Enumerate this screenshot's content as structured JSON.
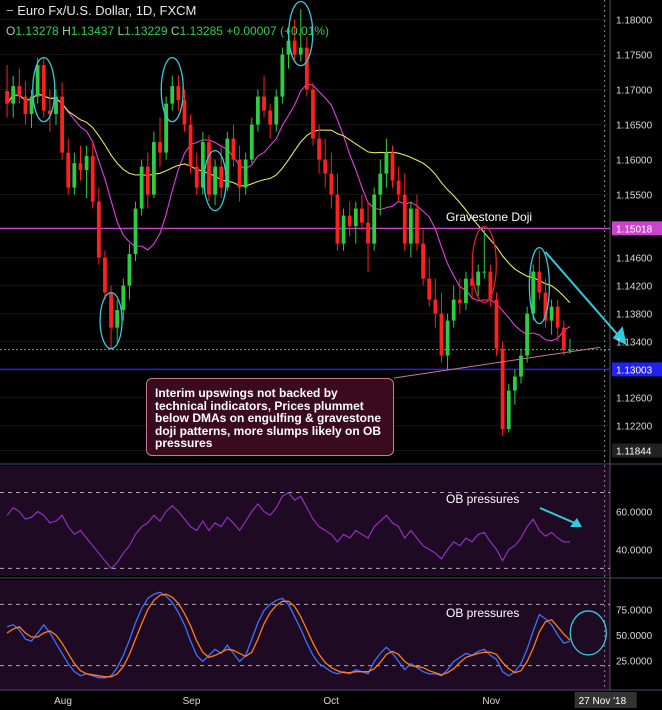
{
  "header": {
    "symbol_title": "Euro Fx/U.S. Dollar, 1D, FXCM",
    "o_label": "O",
    "o_value": "1.13278",
    "h_label": "H",
    "h_value": "1.13437",
    "l_label": "L",
    "l_value": "1.13229",
    "c_label": "C",
    "c_value": "1.13285",
    "change": "+0.00007 (+0.01%)"
  },
  "annotations": {
    "gravestone": "Gravestone Doji",
    "callout": "Interim upswings not backed by technical indicators, Prices plummet below DMAs on engulfing & gravestone doji patterns, more slumps likely on OB pressures",
    "ob_rsi": "OB pressures",
    "ob_stoch": "OB pressures"
  },
  "colors": {
    "background": "#000000",
    "bull": "#2ecc40",
    "bear": "#ff2020",
    "fast_ma": "#e040e0",
    "slow_ma": "#e8e85a",
    "resistance": "#cc44cc",
    "support": "#2222ee",
    "current": "#33cc33",
    "rsi": "#9933cc",
    "stoch_k": "#3f6fff",
    "stoch_d": "#ff7a1a",
    "highlight": "#33ccdd",
    "gravestone_ring": "#dd2222"
  },
  "chart_data": [
    {
      "type": "candlestick",
      "title": "Euro Fx/U.S. Dollar, 1D, FXCM",
      "ylim": [
        1.1168,
        1.1828
      ],
      "y_ticks": [
        "1.18000",
        "1.17500",
        "1.17000",
        "1.16500",
        "1.16000",
        "1.15500",
        "1.15018",
        "1.14600",
        "1.14200",
        "1.13800",
        "1.13400",
        "1.13003",
        "1.12600",
        "1.12200",
        "1.11844"
      ],
      "y_tick_values": [
        1.18,
        1.175,
        1.17,
        1.165,
        1.16,
        1.155,
        1.15018,
        1.146,
        1.142,
        1.138,
        1.134,
        1.13003,
        1.126,
        1.122,
        1.11844
      ],
      "highlighted_levels": [
        {
          "label": "1.15018",
          "value": 1.15018,
          "role": "resistance"
        },
        {
          "label": "1.13003",
          "value": 1.13003,
          "role": "support"
        },
        {
          "label": "1.11844",
          "value": 1.11844,
          "role": "axis_low"
        }
      ],
      "current_price": 1.13285,
      "x_labels": [
        "Aug",
        "Sep",
        "Oct",
        "Nov"
      ],
      "x_label_index": [
        9,
        30,
        53,
        79
      ],
      "cursor_date": "27 Nov '18",
      "cursor_index": 98,
      "candles": [
        [
          1.1698,
          1.1735,
          1.166,
          1.168
        ],
        [
          1.168,
          1.172,
          1.166,
          1.1705
        ],
        [
          1.1705,
          1.173,
          1.168,
          1.169
        ],
        [
          1.169,
          1.1712,
          1.165,
          1.1665
        ],
        [
          1.1665,
          1.17,
          1.1645,
          1.169
        ],
        [
          1.169,
          1.1745,
          1.168,
          1.1735
        ],
        [
          1.1735,
          1.1745,
          1.166,
          1.167
        ],
        [
          1.167,
          1.17,
          1.164,
          1.1665
        ],
        [
          1.1665,
          1.17,
          1.165,
          1.169
        ],
        [
          1.169,
          1.171,
          1.16,
          1.161
        ],
        [
          1.161,
          1.163,
          1.155,
          1.156
        ],
        [
          1.156,
          1.161,
          1.155,
          1.1595
        ],
        [
          1.1595,
          1.162,
          1.157,
          1.1585
        ],
        [
          1.1585,
          1.162,
          1.1545,
          1.1605
        ],
        [
          1.1605,
          1.1625,
          1.153,
          1.154
        ],
        [
          1.154,
          1.156,
          1.145,
          1.146
        ],
        [
          1.146,
          1.147,
          1.14,
          1.141
        ],
        [
          1.141,
          1.142,
          1.133,
          1.136
        ],
        [
          1.136,
          1.14,
          1.134,
          1.1385
        ],
        [
          1.1385,
          1.143,
          1.137,
          1.142
        ],
        [
          1.142,
          1.148,
          1.14,
          1.1465
        ],
        [
          1.1465,
          1.154,
          1.1455,
          1.153
        ],
        [
          1.153,
          1.16,
          1.152,
          1.159
        ],
        [
          1.159,
          1.161,
          1.153,
          1.155
        ],
        [
          1.155,
          1.164,
          1.1545,
          1.1625
        ],
        [
          1.1625,
          1.166,
          1.159,
          1.161
        ],
        [
          1.161,
          1.169,
          1.16,
          1.168
        ],
        [
          1.168,
          1.172,
          1.167,
          1.1705
        ],
        [
          1.1705,
          1.172,
          1.167,
          1.1685
        ],
        [
          1.1685,
          1.17,
          1.164,
          1.165
        ],
        [
          1.165,
          1.1665,
          1.158,
          1.159
        ],
        [
          1.159,
          1.161,
          1.155,
          1.156
        ],
        [
          1.156,
          1.164,
          1.155,
          1.1625
        ],
        [
          1.1625,
          1.1635,
          1.154,
          1.155
        ],
        [
          1.155,
          1.16,
          1.1535,
          1.159
        ],
        [
          1.159,
          1.162,
          1.1545,
          1.156
        ],
        [
          1.156,
          1.164,
          1.1555,
          1.163
        ],
        [
          1.163,
          1.165,
          1.159,
          1.16
        ],
        [
          1.16,
          1.162,
          1.154,
          1.156
        ],
        [
          1.156,
          1.161,
          1.155,
          1.16
        ],
        [
          1.16,
          1.166,
          1.1595,
          1.165
        ],
        [
          1.165,
          1.17,
          1.164,
          1.169
        ],
        [
          1.169,
          1.172,
          1.166,
          1.167
        ],
        [
          1.167,
          1.168,
          1.163,
          1.165
        ],
        [
          1.165,
          1.17,
          1.164,
          1.169
        ],
        [
          1.169,
          1.176,
          1.168,
          1.175
        ],
        [
          1.175,
          1.179,
          1.173,
          1.177
        ],
        [
          1.177,
          1.18,
          1.174,
          1.175
        ],
        [
          1.175,
          1.1815,
          1.174,
          1.176
        ],
        [
          1.176,
          1.1775,
          1.169,
          1.17
        ],
        [
          1.17,
          1.171,
          1.162,
          1.163
        ],
        [
          1.163,
          1.165,
          1.158,
          1.16
        ],
        [
          1.16,
          1.163,
          1.156,
          1.158
        ],
        [
          1.158,
          1.161,
          1.153,
          1.155
        ],
        [
          1.155,
          1.158,
          1.147,
          1.148
        ],
        [
          1.148,
          1.153,
          1.147,
          1.152
        ],
        [
          1.152,
          1.154,
          1.149,
          1.1505
        ],
        [
          1.1505,
          1.154,
          1.148,
          1.153
        ],
        [
          1.153,
          1.155,
          1.15,
          1.151
        ],
        [
          1.151,
          1.154,
          1.144,
          1.148
        ],
        [
          1.148,
          1.156,
          1.147,
          1.155
        ],
        [
          1.155,
          1.16,
          1.152,
          1.158
        ],
        [
          1.158,
          1.163,
          1.156,
          1.161
        ],
        [
          1.161,
          1.162,
          1.156,
          1.157
        ],
        [
          1.157,
          1.159,
          1.154,
          1.155
        ],
        [
          1.155,
          1.158,
          1.147,
          1.148
        ],
        [
          1.148,
          1.154,
          1.146,
          1.153
        ],
        [
          1.153,
          1.155,
          1.147,
          1.148
        ],
        [
          1.148,
          1.15,
          1.142,
          1.143
        ],
        [
          1.143,
          1.146,
          1.139,
          1.14
        ],
        [
          1.14,
          1.143,
          1.136,
          1.138
        ],
        [
          1.138,
          1.141,
          1.131,
          1.132
        ],
        [
          1.132,
          1.138,
          1.13,
          1.137
        ],
        [
          1.137,
          1.142,
          1.136,
          1.14
        ],
        [
          1.14,
          1.143,
          1.138,
          1.1395
        ],
        [
          1.1395,
          1.144,
          1.1385,
          1.143
        ],
        [
          1.143,
          1.144,
          1.14,
          1.142
        ],
        [
          1.142,
          1.145,
          1.1405,
          1.144
        ],
        [
          1.144,
          1.15,
          1.143,
          1.144
        ],
        [
          1.144,
          1.145,
          1.139,
          1.14
        ],
        [
          1.14,
          1.141,
          1.132,
          1.133
        ],
        [
          1.133,
          1.134,
          1.1205,
          1.1215
        ],
        [
          1.1215,
          1.128,
          1.121,
          1.127
        ],
        [
          1.127,
          1.13,
          1.125,
          1.129
        ],
        [
          1.129,
          1.133,
          1.128,
          1.132
        ],
        [
          1.132,
          1.139,
          1.131,
          1.138
        ],
        [
          1.138,
          1.145,
          1.137,
          1.144
        ],
        [
          1.144,
          1.147,
          1.14,
          1.141
        ],
        [
          1.141,
          1.143,
          1.136,
          1.137
        ],
        [
          1.137,
          1.14,
          1.135,
          1.139
        ],
        [
          1.139,
          1.14,
          1.134,
          1.136
        ],
        [
          1.136,
          1.137,
          1.132,
          1.13278
        ],
        [
          1.13278,
          1.13437,
          1.13229,
          1.13285
        ]
      ],
      "moving_averages": [
        {
          "color": "fast_ma",
          "period": 10
        },
        {
          "color": "slow_ma",
          "period": 30
        }
      ]
    },
    {
      "type": "line",
      "title": "RSI",
      "ylim": [
        26,
        84
      ],
      "y_ticks": [
        "60.0000",
        "40.0000"
      ],
      "y_tick_values": [
        60,
        40
      ],
      "bands": [
        70,
        30
      ],
      "values": [
        58,
        62,
        60,
        56,
        57,
        60,
        58,
        54,
        55,
        58,
        52,
        48,
        50,
        46,
        42,
        38,
        34,
        30,
        33,
        38,
        42,
        48,
        52,
        54,
        58,
        55,
        60,
        63,
        60,
        56,
        52,
        50,
        55,
        50,
        54,
        52,
        57,
        54,
        50,
        55,
        60,
        64,
        60,
        58,
        62,
        68,
        70,
        66,
        68,
        62,
        56,
        52,
        50,
        48,
        44,
        48,
        46,
        50,
        48,
        46,
        52,
        55,
        58,
        54,
        52,
        46,
        50,
        46,
        42,
        40,
        38,
        35,
        40,
        44,
        42,
        46,
        44,
        48,
        49,
        44,
        40,
        34,
        40,
        42,
        46,
        52,
        56,
        50,
        47,
        49,
        46,
        44,
        44
      ],
      "label": "OB pressures"
    },
    {
      "type": "line",
      "title": "Stochastic",
      "ylim": [
        0,
        100
      ],
      "y_ticks": [
        "75.0000",
        "50.0000",
        "25.0000"
      ],
      "y_tick_values": [
        75,
        50,
        25
      ],
      "bands": [
        80,
        20
      ],
      "series": [
        {
          "color": "stoch_k",
          "values": [
            58,
            60,
            55,
            46,
            44,
            52,
            60,
            52,
            42,
            32,
            22,
            14,
            10,
            12,
            10,
            8,
            8,
            10,
            18,
            30,
            45,
            62,
            76,
            86,
            90,
            92,
            88,
            82,
            72,
            60,
            44,
            30,
            24,
            30,
            36,
            32,
            40,
            32,
            24,
            30,
            46,
            62,
            74,
            80,
            84,
            86,
            80,
            68,
            56,
            42,
            30,
            22,
            18,
            14,
            12,
            14,
            12,
            16,
            14,
            12,
            24,
            32,
            38,
            32,
            24,
            16,
            22,
            18,
            14,
            12,
            12,
            10,
            16,
            24,
            28,
            32,
            30,
            34,
            36,
            30,
            26,
            14,
            10,
            14,
            22,
            36,
            54,
            70,
            66,
            60,
            50,
            42,
            44
          ]
        },
        {
          "color": "stoch_d",
          "values": [
            52,
            56,
            58,
            52,
            48,
            48,
            52,
            54,
            50,
            42,
            32,
            22,
            15,
            12,
            11,
            10,
            9,
            9,
            12,
            19,
            31,
            46,
            61,
            75,
            84,
            89,
            90,
            87,
            81,
            71,
            59,
            44,
            33,
            28,
            30,
            33,
            36,
            35,
            32,
            29,
            33,
            46,
            61,
            72,
            79,
            83,
            83,
            78,
            68,
            55,
            42,
            31,
            23,
            18,
            15,
            13,
            13,
            14,
            14,
            14,
            17,
            23,
            31,
            34,
            31,
            24,
            20,
            19,
            18,
            15,
            13,
            11,
            13,
            17,
            23,
            28,
            30,
            32,
            33,
            33,
            31,
            23,
            17,
            13,
            15,
            24,
            37,
            53,
            63,
            65,
            58,
            51,
            45
          ]
        }
      ],
      "label": "OB pressures"
    }
  ]
}
